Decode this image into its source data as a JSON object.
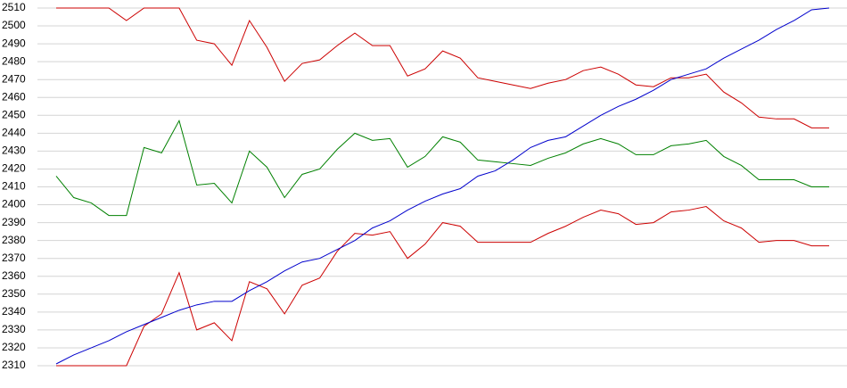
{
  "chart_data": {
    "type": "line",
    "categories": [
      null,
      null,
      null,
      null,
      null,
      null,
      null,
      null,
      null,
      null,
      null,
      null,
      null,
      null,
      null,
      null,
      null,
      null,
      null,
      null,
      null,
      null,
      null,
      null,
      null,
      null,
      null,
      null,
      null,
      null,
      null,
      null,
      null,
      null,
      null,
      null,
      null,
      null,
      null,
      null,
      null,
      null,
      null,
      null,
      null
    ],
    "series": [
      {
        "color": "#cc0000",
        "values": [
          2510,
          2510,
          2510,
          2510,
          2503,
          2510,
          2510,
          2510,
          2492,
          2490,
          2478,
          2503,
          2488,
          2469,
          2479,
          2481,
          2489,
          2496,
          2489,
          2489,
          2472,
          2476,
          2486,
          2482,
          2471,
          2469,
          2467,
          2465,
          2468,
          2470,
          2475,
          2477,
          2473,
          2467,
          2466,
          2471,
          2471,
          2473,
          2463,
          2457,
          2449,
          2448,
          2448,
          2443,
          2443
        ]
      },
      {
        "color": "#008000",
        "values": [
          2416,
          2404,
          2401,
          2394,
          2394,
          2432,
          2429,
          2447,
          2411,
          2412,
          2401,
          2430,
          2421,
          2404,
          2417,
          2420,
          2431,
          2440,
          2436,
          2437,
          2421,
          2427,
          2438,
          2435,
          2425,
          2424,
          2423,
          2422,
          2426,
          2429,
          2434,
          2437,
          2434,
          2428,
          2428,
          2433,
          2434,
          2436,
          2427,
          2422,
          2414,
          2414,
          2414,
          2410,
          2410
        ]
      },
      {
        "color": "#cc0000",
        "values": [
          2310,
          2310,
          2310,
          2310,
          2310,
          2332,
          2339,
          2362,
          2330,
          2334,
          2324,
          2357,
          2353,
          2339,
          2355,
          2359,
          2374,
          2384,
          2383,
          2385,
          2370,
          2378,
          2390,
          2388,
          2379,
          2379,
          2379,
          2379,
          2384,
          2388,
          2393,
          2397,
          2395,
          2389,
          2390,
          2396,
          2397,
          2399,
          2391,
          2387,
          2379,
          2380,
          2380,
          2377,
          2377
        ]
      },
      {
        "color": "#0000cc",
        "values": [
          2311,
          2316,
          2320,
          2324,
          2329,
          2333,
          2337,
          2341,
          2344,
          2346,
          2346,
          2352,
          2357,
          2363,
          2368,
          2370,
          2375,
          2380,
          2387,
          2391,
          2397,
          2402,
          2406,
          2409,
          2416,
          2419,
          2425,
          2432,
          2436,
          2438,
          2444,
          2450,
          2455,
          2459,
          2464,
          2470,
          2473,
          2476,
          2482,
          2487,
          2492,
          2498,
          2503,
          2509,
          2510
        ]
      }
    ],
    "ylim": [
      2310,
      2510
    ],
    "yticks": [
      2310,
      2320,
      2330,
      2340,
      2350,
      2360,
      2370,
      2380,
      2390,
      2400,
      2410,
      2420,
      2430,
      2440,
      2450,
      2460,
      2470,
      2480,
      2490,
      2500,
      2510
    ],
    "grid": true
  }
}
